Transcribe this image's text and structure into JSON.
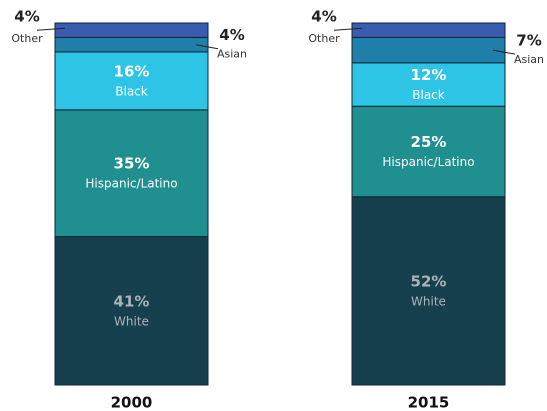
{
  "chart_data": {
    "type": "stacked_bar",
    "categories": [
      "2000",
      "2015"
    ],
    "ylim": [
      0,
      100
    ],
    "series": [
      {
        "name": "White",
        "color": "#17404f",
        "values": [
          41,
          52
        ],
        "value_labels": [
          "41%",
          "52%"
        ]
      },
      {
        "name": "Hispanic/Latino",
        "color": "#1f8f8f",
        "values": [
          35,
          25
        ],
        "value_labels": [
          "35%",
          "25%"
        ]
      },
      {
        "name": "Black",
        "color": "#2ec4e6",
        "values": [
          16,
          12
        ],
        "value_labels": [
          "16%",
          "12%"
        ]
      },
      {
        "name": "Asian",
        "color": "#1f7fa8",
        "values": [
          4,
          7
        ],
        "value_labels": [
          "4%",
          "7%"
        ]
      },
      {
        "name": "Other",
        "color": "#3b5bb0",
        "values": [
          4,
          4
        ],
        "value_labels": [
          "4%",
          "4%"
        ]
      }
    ]
  }
}
